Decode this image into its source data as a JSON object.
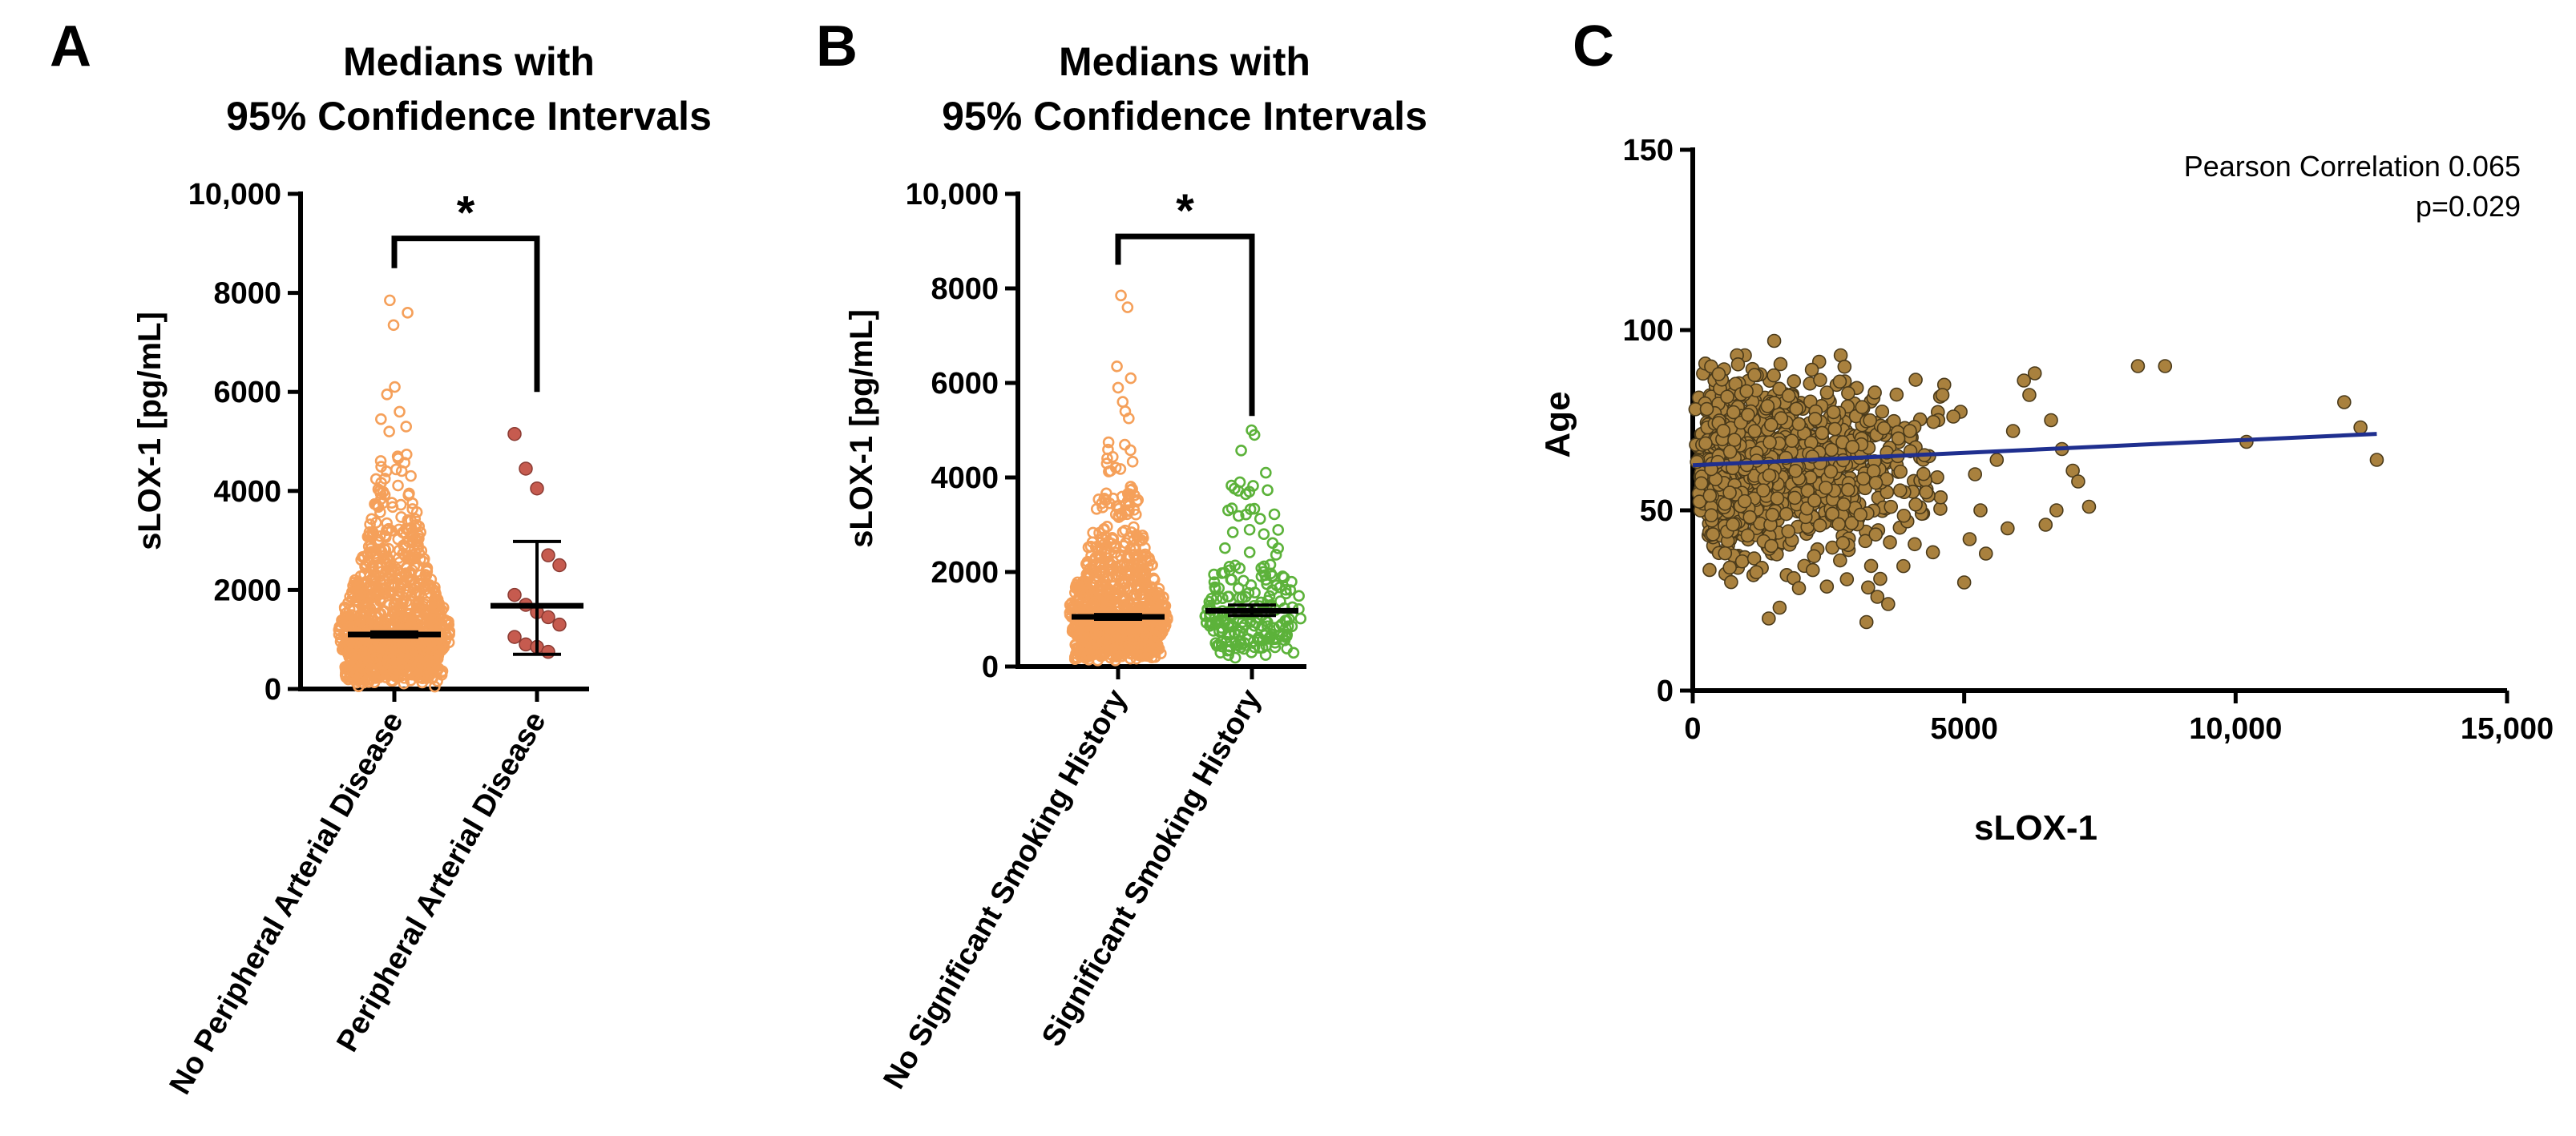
{
  "figure": {
    "panels": [
      {
        "letter": "A"
      },
      {
        "letter": "B"
      },
      {
        "letter": "C"
      }
    ]
  },
  "chart_data": [
    {
      "type": "scatter",
      "subtype": "dot-plot-with-median-ci",
      "panel": "A",
      "title_lines": [
        "Medians with",
        "95% Confidence Intervals"
      ],
      "ylabel": "sLOX-1 [pg/mL]",
      "xlabel": "",
      "ylim": [
        0,
        10000
      ],
      "yticks": [
        0,
        2000,
        4000,
        6000,
        8000,
        10000
      ],
      "ytick_labels": [
        "0",
        "2000",
        "4000",
        "6000",
        "8000",
        "10,000"
      ],
      "grid": false,
      "categories": [
        "No Peripheral Arterial Disease",
        "Peripheral Arterial Disease"
      ],
      "series": [
        {
          "name": "No Peripheral Arterial Disease",
          "color": "#f5a05a",
          "marker": "open-circle",
          "median": 1100,
          "ci": [
            1050,
            1150
          ],
          "approx_n": 1100,
          "max_value": 7850,
          "outliers": [
            7850,
            7600,
            7350,
            6100,
            5950,
            5600,
            5450,
            5300,
            5200
          ]
        },
        {
          "name": "Peripheral Arterial Disease",
          "color": "#c65b4f",
          "marker": "filled-circle",
          "median": 1680,
          "ci": [
            700,
            2980
          ],
          "values": [
            5150,
            4450,
            4050,
            2700,
            2500,
            1900,
            1700,
            1550,
            1450,
            1300,
            1050,
            900,
            850,
            750
          ]
        }
      ],
      "significance": {
        "between": [
          0,
          1
        ],
        "label": "*",
        "y": 9100
      }
    },
    {
      "type": "scatter",
      "subtype": "dot-plot-with-median-ci",
      "panel": "B",
      "title_lines": [
        "Medians with",
        "95% Confidence Intervals"
      ],
      "ylabel": "sLOX-1 [pg/mL]",
      "xlabel": "",
      "ylim": [
        0,
        10000
      ],
      "yticks": [
        0,
        2000,
        4000,
        6000,
        8000,
        10000
      ],
      "ytick_labels": [
        "0",
        "2000",
        "4000",
        "6000",
        "8000",
        "10,000"
      ],
      "grid": false,
      "categories": [
        "No Significant Smoking History",
        "Significant Smoking History"
      ],
      "series": [
        {
          "name": "No Significant Smoking History",
          "color": "#f5a05a",
          "marker": "open-circle",
          "median": 1050,
          "ci": [
            1000,
            1100
          ],
          "approx_n": 950,
          "max_value": 7850,
          "outliers": [
            7850,
            7600,
            6350,
            6100,
            5900,
            5600,
            5400,
            5250
          ]
        },
        {
          "name": "Significant Smoking History",
          "color": "#5cb23a",
          "marker": "open-circle",
          "median": 1180,
          "ci": [
            1080,
            1300
          ],
          "approx_n": 200,
          "max_value": 5000,
          "outliers": [
            5000,
            4900,
            4100,
            3900
          ]
        }
      ],
      "significance": {
        "between": [
          0,
          1
        ],
        "label": "*",
        "y": 9100
      }
    },
    {
      "type": "scatter",
      "panel": "C",
      "title": "",
      "xlabel": "sLOX-1",
      "ylabel": "Age",
      "xlim": [
        0,
        15000
      ],
      "ylim": [
        0,
        150
      ],
      "xticks": [
        0,
        5000,
        10000,
        15000
      ],
      "xtick_labels": [
        "0",
        "5000",
        "10,000",
        "15,000"
      ],
      "yticks": [
        0,
        50,
        100,
        150
      ],
      "ytick_labels": [
        "0",
        "50",
        "100",
        "150"
      ],
      "grid": false,
      "annotation_lines": [
        "Pearson Correlation 0.065",
        "p=0.029"
      ],
      "point_color": "#a9813e",
      "point_edge_color": "#4a3a1a",
      "approx_n": 1150,
      "sparse_points": [
        {
          "x": 8200,
          "y": 90
        },
        {
          "x": 8700,
          "y": 90
        },
        {
          "x": 12000,
          "y": 80
        },
        {
          "x": 12300,
          "y": 73
        },
        {
          "x": 12600,
          "y": 64
        },
        {
          "x": 10200,
          "y": 69
        },
        {
          "x": 6100,
          "y": 86
        },
        {
          "x": 6300,
          "y": 88
        },
        {
          "x": 6600,
          "y": 75
        },
        {
          "x": 6800,
          "y": 67
        },
        {
          "x": 7000,
          "y": 61
        },
        {
          "x": 7300,
          "y": 51
        },
        {
          "x": 7100,
          "y": 58
        },
        {
          "x": 6700,
          "y": 50
        },
        {
          "x": 6500,
          "y": 46
        },
        {
          "x": 5800,
          "y": 45
        },
        {
          "x": 5300,
          "y": 50
        },
        {
          "x": 5600,
          "y": 64
        },
        {
          "x": 5900,
          "y": 72
        },
        {
          "x": 6200,
          "y": 82
        },
        {
          "x": 5000,
          "y": 30
        },
        {
          "x": 5100,
          "y": 42
        },
        {
          "x": 5400,
          "y": 38
        },
        {
          "x": 4800,
          "y": 76
        },
        {
          "x": 4600,
          "y": 82
        },
        {
          "x": 5200,
          "y": 60
        },
        {
          "x": 4300,
          "y": 55
        },
        {
          "x": 4000,
          "y": 72
        },
        {
          "x": 3200,
          "y": 19
        },
        {
          "x": 1400,
          "y": 20
        },
        {
          "x": 1600,
          "y": 23
        },
        {
          "x": 3600,
          "y": 24
        },
        {
          "x": 1500,
          "y": 97
        }
      ],
      "regression_line": {
        "x": [
          0,
          12600
        ],
        "y": [
          62.5,
          71.2
        ],
        "color": "#1f2f8f"
      }
    }
  ]
}
